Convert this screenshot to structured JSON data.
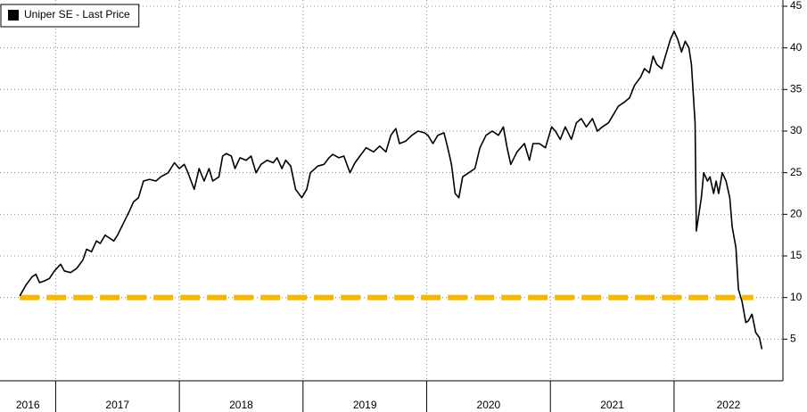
{
  "chart_data": {
    "type": "line",
    "legend_position": "upper left",
    "grid": true,
    "xlim": [
      2016.55,
      2022.88
    ],
    "xticks": [
      2016,
      2017,
      2018,
      2019,
      2020,
      2021,
      2022
    ],
    "ylim": [
      0,
      45
    ],
    "yticks": [
      5,
      10,
      15,
      20,
      25,
      30,
      35,
      40,
      45
    ],
    "hline": {
      "y": 10,
      "x": [
        2016.71,
        2022.64
      ],
      "color": "#f5b800"
    },
    "x": [
      2016.71,
      2016.76,
      2016.81,
      2016.84,
      2016.87,
      2016.91,
      2016.95,
      2016.99,
      2017.04,
      2017.07,
      2017.12,
      2017.17,
      2017.22,
      2017.25,
      2017.29,
      2017.33,
      2017.36,
      2017.4,
      2017.43,
      2017.47,
      2017.5,
      2017.55,
      2017.6,
      2017.63,
      2017.67,
      2017.71,
      2017.76,
      2017.81,
      2017.85,
      2017.91,
      2017.96,
      2018.0,
      2018.04,
      2018.07,
      2018.12,
      2018.16,
      2018.2,
      2018.24,
      2018.27,
      2018.32,
      2018.35,
      2018.38,
      2018.42,
      2018.45,
      2018.49,
      2018.54,
      2018.58,
      2018.62,
      2018.66,
      2018.71,
      2018.76,
      2018.79,
      2018.83,
      2018.86,
      2018.9,
      2018.94,
      2018.99,
      2019.03,
      2019.06,
      2019.12,
      2019.17,
      2019.21,
      2019.24,
      2019.29,
      2019.33,
      2019.38,
      2019.42,
      2019.47,
      2019.51,
      2019.57,
      2019.62,
      2019.67,
      2019.71,
      2019.75,
      2019.78,
      2019.83,
      2019.88,
      2019.93,
      2019.98,
      2020.01,
      2020.05,
      2020.09,
      2020.14,
      2020.17,
      2020.2,
      2020.23,
      2020.26,
      2020.29,
      2020.34,
      2020.39,
      2020.43,
      2020.48,
      2020.53,
      2020.58,
      2020.62,
      2020.65,
      2020.68,
      2020.73,
      2020.79,
      2020.83,
      2020.86,
      2020.91,
      2020.96,
      2021.01,
      2021.04,
      2021.08,
      2021.12,
      2021.17,
      2021.21,
      2021.25,
      2021.29,
      2021.34,
      2021.38,
      2021.42,
      2021.47,
      2021.51,
      2021.55,
      2021.6,
      2021.64,
      2021.68,
      2021.73,
      2021.76,
      2021.8,
      2021.83,
      2021.86,
      2021.9,
      2021.93,
      2021.97,
      2022.0,
      2022.03,
      2022.06,
      2022.09,
      2022.12,
      2022.14,
      2022.17,
      2022.18,
      2022.22,
      2022.24,
      2022.27,
      2022.29,
      2022.32,
      2022.34,
      2022.36,
      2022.39,
      2022.42,
      2022.45,
      2022.47,
      2022.5,
      2022.52,
      2022.55,
      2022.58,
      2022.6,
      2022.63,
      2022.66,
      2022.69,
      2022.71
    ],
    "series": [
      {
        "name": "Uniper SE - Last Price",
        "color": "#000000",
        "values": [
          10.2,
          11.5,
          12.5,
          12.8,
          11.8,
          12,
          12.3,
          13.2,
          14,
          13.2,
          13,
          13.5,
          14.5,
          15.8,
          15.5,
          16.8,
          16.5,
          17.5,
          17.2,
          16.8,
          17.5,
          19,
          20.5,
          21.5,
          22,
          24,
          24.2,
          24,
          24.5,
          25,
          26.2,
          25.5,
          26,
          25,
          23,
          25.5,
          24,
          25.5,
          24,
          24.5,
          27,
          27.3,
          27,
          25.5,
          26.8,
          26.5,
          27,
          25,
          26,
          26.5,
          26.2,
          26.8,
          25.5,
          26.5,
          25.8,
          23,
          22,
          23,
          25,
          25.8,
          26,
          26.8,
          27.2,
          26.8,
          27,
          25,
          26.2,
          27.2,
          28,
          27.5,
          28.2,
          27.5,
          29.5,
          30.3,
          28.5,
          28.8,
          29.5,
          30,
          29.8,
          29.5,
          28.5,
          29.5,
          29.8,
          28,
          26,
          22.5,
          22,
          24.5,
          25,
          25.5,
          28,
          29.5,
          30,
          29.5,
          30.5,
          28,
          26,
          27.5,
          28.5,
          26.5,
          28.5,
          28.5,
          28,
          30.5,
          30,
          29,
          30.5,
          29,
          31,
          31.5,
          30.5,
          31.5,
          30,
          30.5,
          31,
          32,
          33,
          33.5,
          34,
          35.5,
          36.5,
          37.5,
          37,
          39,
          38,
          37.5,
          39,
          41,
          42,
          41,
          39.5,
          40.8,
          40,
          38,
          31,
          18,
          22,
          25,
          24,
          24.5,
          22.5,
          24,
          22.5,
          25,
          24,
          22,
          18.5,
          16,
          11,
          9.5,
          7,
          7.2,
          8,
          5.8,
          5.2,
          3.8
        ]
      }
    ]
  }
}
